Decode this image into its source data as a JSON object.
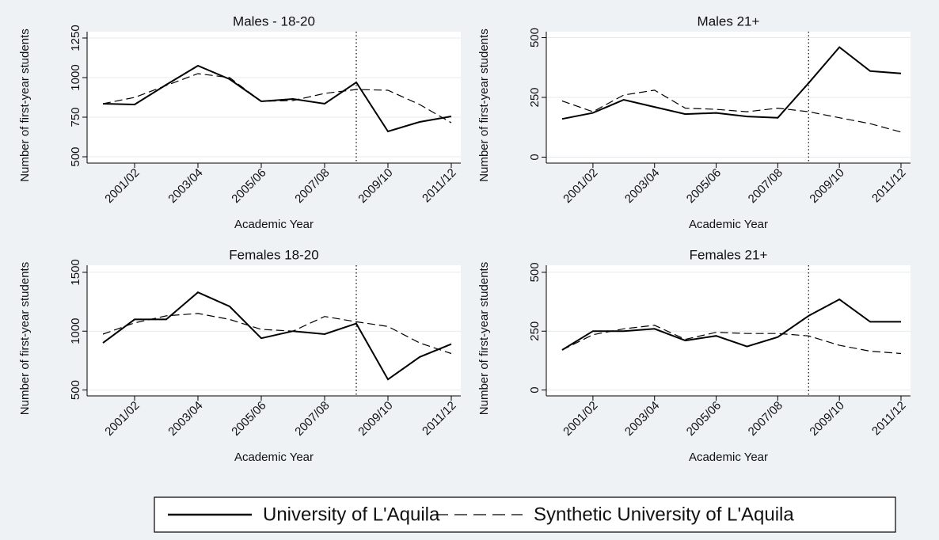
{
  "chart_data": [
    {
      "type": "line",
      "title": "Males - 18-20",
      "xlabel": "Academic Year",
      "ylabel": "Number of first-year students",
      "categories": [
        null,
        "2001/02",
        null,
        "2003/04",
        null,
        "2005/06",
        null,
        "2007/08",
        null,
        "2009/10",
        null,
        "2011/12"
      ],
      "series": [
        {
          "color": "#000000",
          "dash": "solid",
          "values": [
            835,
            830,
            955,
            1075,
            990,
            850,
            865,
            835,
            970,
            660,
            720,
            755
          ]
        },
        {
          "color": "#000000",
          "dash": "dashed",
          "values": [
            835,
            875,
            950,
            1025,
            1000,
            850,
            855,
            900,
            925,
            920,
            830,
            715
          ]
        }
      ],
      "ylim": [
        460,
        1290
      ],
      "yticks": [
        500,
        750,
        1000,
        1250
      ],
      "grid": true,
      "vline": 8
    },
    {
      "type": "line",
      "title": "Males 21+",
      "xlabel": "Academic Year",
      "ylabel": "Number of first-year students",
      "categories": [
        null,
        "2001/02",
        null,
        "2003/04",
        null,
        "2005/06",
        null,
        "2007/08",
        null,
        "2009/10",
        null,
        "2011/12"
      ],
      "series": [
        {
          "color": "#000000",
          "dash": "solid",
          "values": [
            160,
            185,
            240,
            210,
            180,
            185,
            170,
            165,
            310,
            460,
            360,
            350
          ]
        },
        {
          "color": "#000000",
          "dash": "dashed",
          "values": [
            235,
            190,
            260,
            280,
            205,
            200,
            190,
            205,
            190,
            165,
            140,
            105
          ]
        }
      ],
      "ylim": [
        -25,
        525
      ],
      "yticks": [
        0,
        250,
        500
      ],
      "grid": true,
      "vline": 8
    },
    {
      "type": "line",
      "title": "Females 18-20",
      "xlabel": "Academic Year",
      "ylabel": "Number of first-year students",
      "categories": [
        null,
        "2001/02",
        null,
        "2003/04",
        null,
        "2005/06",
        null,
        "2007/08",
        null,
        "2009/10",
        null,
        "2011/12"
      ],
      "series": [
        {
          "color": "#000000",
          "dash": "solid",
          "values": [
            900,
            1100,
            1100,
            1330,
            1210,
            940,
            1000,
            975,
            1065,
            590,
            780,
            890
          ]
        },
        {
          "color": "#000000",
          "dash": "dashed",
          "values": [
            975,
            1070,
            1130,
            1150,
            1100,
            1015,
            1000,
            1125,
            1080,
            1040,
            900,
            810
          ]
        }
      ],
      "ylim": [
        450,
        1560
      ],
      "yticks": [
        500,
        1000,
        1500
      ],
      "grid": true,
      "vline": 8
    },
    {
      "type": "line",
      "title": "Females 21+",
      "xlabel": "Academic Year",
      "ylabel": "Number of first-year students",
      "categories": [
        null,
        "2001/02",
        null,
        "2003/04",
        null,
        "2005/06",
        null,
        "2007/08",
        null,
        "2009/10",
        null,
        "2011/12"
      ],
      "series": [
        {
          "color": "#000000",
          "dash": "solid",
          "values": [
            170,
            250,
            250,
            260,
            210,
            230,
            185,
            225,
            315,
            385,
            290,
            290
          ]
        },
        {
          "color": "#000000",
          "dash": "dashed",
          "values": [
            170,
            235,
            260,
            275,
            215,
            245,
            240,
            240,
            230,
            190,
            165,
            155
          ]
        }
      ],
      "ylim": [
        -25,
        530
      ],
      "yticks": [
        0,
        250,
        500
      ],
      "grid": true,
      "vline": 8
    }
  ],
  "legend": {
    "entries": [
      "University of L'Aquila",
      "Synthetic University of L'Aquila"
    ]
  }
}
